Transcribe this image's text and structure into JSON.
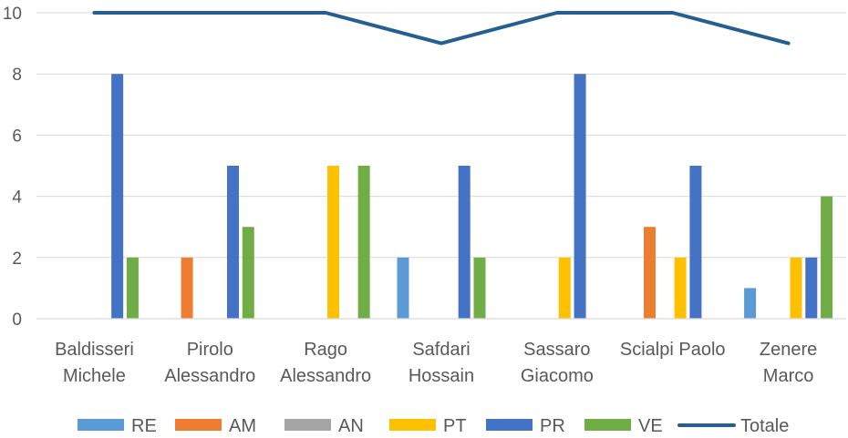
{
  "chart_data": {
    "type": "bar",
    "categories": [
      [
        "Baldisseri",
        "Michele"
      ],
      [
        "Pirolo",
        "Alessandro"
      ],
      [
        "Rago",
        "Alessandro"
      ],
      [
        "Safdari",
        "Hossain"
      ],
      [
        "Sassaro",
        "Giacomo"
      ],
      [
        "Scialpi Paolo"
      ],
      [
        "Zenere",
        "Marco"
      ]
    ],
    "series": [
      {
        "name": "RE",
        "color": "#5b9bd5",
        "values": [
          0,
          0,
          0,
          2,
          0,
          0,
          1
        ]
      },
      {
        "name": "AM",
        "color": "#ed7d31",
        "values": [
          0,
          2,
          0,
          0,
          0,
          3,
          0
        ]
      },
      {
        "name": "AN",
        "color": "#a5a5a5",
        "values": [
          0,
          0,
          0,
          0,
          0,
          0,
          0
        ]
      },
      {
        "name": "PT",
        "color": "#ffc000",
        "values": [
          0,
          0,
          5,
          0,
          2,
          2,
          2
        ]
      },
      {
        "name": "PR",
        "color": "#4472c4",
        "values": [
          8,
          5,
          0,
          5,
          8,
          5,
          2
        ]
      },
      {
        "name": "VE",
        "color": "#70ad47",
        "values": [
          2,
          3,
          5,
          2,
          0,
          0,
          4
        ]
      }
    ],
    "line_series": {
      "name": "Totale",
      "color": "#255e91",
      "values": [
        10,
        10,
        10,
        9,
        10,
        10,
        9
      ]
    },
    "ylim": [
      0,
      10
    ],
    "yticks": [
      "0",
      "2",
      "4",
      "6",
      "8",
      "10"
    ],
    "grid": true,
    "legend_position": "bottom"
  }
}
